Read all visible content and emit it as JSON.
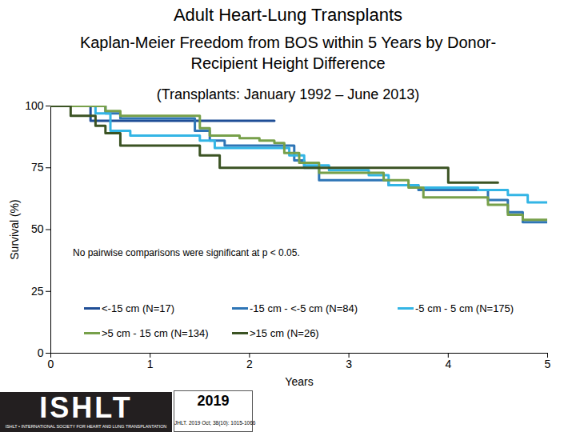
{
  "chart_data": {
    "type": "line",
    "title": "Adult Heart-Lung Transplants",
    "subtitle": "Kaplan-Meier Freedom from BOS within 5 Years by Donor-Recipient Height Difference",
    "annotations": [
      "(Transplants: January 1992 – June 2013)",
      "No pairwise comparisons were significant at p < 0.05."
    ],
    "x_label": "Years",
    "y_label": "Survival (%)",
    "xlim": [
      0,
      5
    ],
    "xticks": [
      0,
      1,
      2,
      3,
      4,
      5
    ],
    "ylim": [
      0,
      100
    ],
    "yticks": [
      0,
      25,
      50,
      75,
      100
    ],
    "grid": false,
    "line_style": "step",
    "series": [
      {
        "name": "<-15 cm (N=17)",
        "color": "#1f4e96",
        "x": [
          0,
          0.4,
          2.25
        ],
        "values": [
          100,
          94,
          94
        ]
      },
      {
        "name": "-15 cm - <-5 cm (N=84)",
        "color": "#2e75b6",
        "x": [
          0,
          0.55,
          0.7,
          1.35,
          1.45,
          1.6,
          1.75,
          2.25,
          2.45,
          2.55,
          2.7,
          3.3,
          3.4,
          3.7,
          4.2,
          4.4,
          4.6,
          4.75,
          5
        ],
        "values": [
          100,
          97,
          95,
          95,
          90,
          86,
          84,
          84,
          78,
          75,
          70,
          70,
          68,
          66,
          66,
          62,
          57,
          53,
          53
        ]
      },
      {
        "name": "-5 cm - 5 cm (N=175)",
        "color": "#33b5e5",
        "x": [
          0,
          0.45,
          0.6,
          0.8,
          1.4,
          1.5,
          1.65,
          2.25,
          2.4,
          2.55,
          2.8,
          3.2,
          3.4,
          3.7,
          4.3,
          4.6,
          4.8,
          5
        ],
        "values": [
          100,
          97,
          90,
          88,
          88,
          86,
          83,
          83,
          80,
          76,
          74,
          72,
          68,
          67,
          66,
          64,
          61,
          61
        ]
      },
      {
        "name": ">5 cm - 15 cm (N=134)",
        "color": "#77a04a",
        "x": [
          0,
          0.55,
          0.7,
          1.35,
          1.5,
          1.6,
          1.9,
          2.1,
          2.25,
          2.35,
          2.5,
          2.7,
          3.2,
          3.35,
          3.6,
          3.75,
          4.2,
          4.4,
          4.6,
          4.75,
          5
        ],
        "values": [
          100,
          98,
          96,
          96,
          91,
          88,
          87,
          86,
          85,
          81,
          77,
          73,
          73,
          70,
          67,
          63,
          63,
          60,
          56,
          54,
          54
        ]
      },
      {
        "name": ">15 cm (N=26)",
        "color": "#3b5323",
        "x": [
          0,
          0.2,
          0.45,
          0.55,
          0.7,
          1.3,
          1.5,
          1.7,
          4.0,
          4.5
        ],
        "values": [
          100,
          96,
          92,
          89,
          84,
          84,
          80,
          75,
          69,
          69
        ]
      }
    ],
    "footer": {
      "logo": "ISHLT",
      "society": "ISHLT • INTERNATIONAL SOCIETY FOR HEART AND LUNG TRANSPLANTATION",
      "year": "2019",
      "citation": "JHLT. 2019 Oct; 38(10): 1015-1066"
    }
  }
}
